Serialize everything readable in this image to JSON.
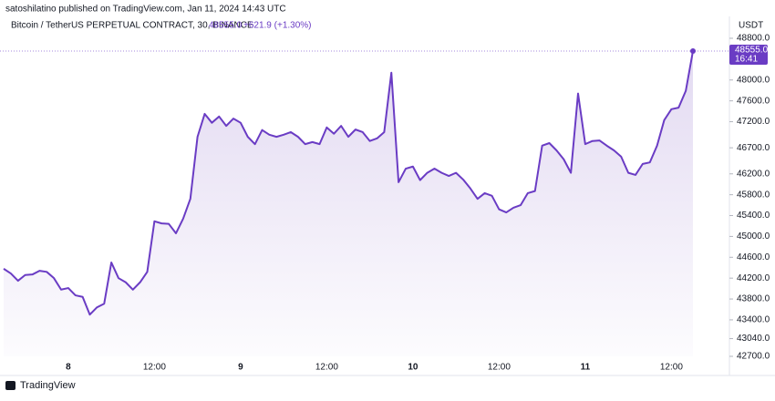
{
  "header": "satoshilatino published on TradingView.com, Jan 11, 2024 14:43 UTC",
  "footer": "TradingView",
  "chart_data": {
    "type": "line",
    "legend": {
      "symbol": "Bitcoin / TetherUS PERPETUAL CONTRACT, 30, BINANCE",
      "price": "48555.0",
      "change": "+621.9 (+1.30%)"
    },
    "axis_unit": "USDT",
    "price_tag": {
      "price": "48555.0",
      "countdown": "16:41"
    },
    "categories": [
      null,
      null,
      null,
      null,
      null,
      null,
      null,
      null,
      null,
      "8",
      null,
      null,
      null,
      null,
      null,
      null,
      null,
      null,
      null,
      null,
      null,
      "12:00",
      null,
      null,
      null,
      null,
      null,
      null,
      null,
      null,
      null,
      null,
      null,
      "9",
      null,
      null,
      null,
      null,
      null,
      null,
      null,
      null,
      null,
      null,
      null,
      "12:00",
      null,
      null,
      null,
      null,
      null,
      null,
      null,
      null,
      null,
      null,
      null,
      "10",
      null,
      null,
      null,
      null,
      null,
      null,
      null,
      null,
      null,
      null,
      null,
      "12:00",
      null,
      null,
      null,
      null,
      null,
      null,
      null,
      null,
      null,
      null,
      null,
      "11",
      null,
      null,
      null,
      null,
      null,
      null,
      null,
      null,
      null,
      null,
      null,
      "12:00",
      null,
      null,
      null
    ],
    "series": [
      {
        "color": "#6a3cc4",
        "values": [
          44380,
          44290,
          44150,
          44260,
          44270,
          44340,
          44320,
          44200,
          43980,
          44010,
          43870,
          43840,
          43500,
          43640,
          43710,
          44500,
          44200,
          44120,
          43980,
          44120,
          44320,
          45290,
          45250,
          45240,
          45060,
          45340,
          45720,
          46910,
          47350,
          47180,
          47300,
          47120,
          47260,
          47180,
          46910,
          46770,
          47040,
          46950,
          46910,
          46950,
          47000,
          46910,
          46770,
          46810,
          46770,
          47090,
          46970,
          47120,
          46910,
          47050,
          47000,
          46830,
          46880,
          47000,
          48140,
          46040,
          46300,
          46340,
          46080,
          46220,
          46300,
          46220,
          46160,
          46220,
          46090,
          45920,
          45720,
          45830,
          45780,
          45520,
          45460,
          45550,
          45600,
          45830,
          45870,
          46740,
          46790,
          46650,
          46480,
          46220,
          47740,
          46770,
          46830,
          46840,
          46740,
          46650,
          46530,
          46220,
          46180,
          46390,
          46420,
          46740,
          47230,
          47440,
          47470,
          47790,
          48555
        ]
      }
    ],
    "ylim": [
      42700,
      48800
    ],
    "yticks": [
      {
        "value": 48800,
        "label": "48800.0"
      },
      {
        "value": 48000,
        "label": "48000.0"
      },
      {
        "value": 47600,
        "label": "47600.0"
      },
      {
        "value": 47200,
        "label": "47200.0"
      },
      {
        "value": 46700,
        "label": "46700.0"
      },
      {
        "value": 46200,
        "label": "46200.0"
      },
      {
        "value": 45800,
        "label": "45800.0"
      },
      {
        "value": 45400,
        "label": "45400.0"
      },
      {
        "value": 45000,
        "label": "45000.0"
      },
      {
        "value": 44600,
        "label": "44600.0"
      },
      {
        "value": 44200,
        "label": "44200.0"
      },
      {
        "value": 43800,
        "label": "43800.0"
      },
      {
        "value": 43400,
        "label": "43400.0"
      },
      {
        "value": 43040,
        "label": "43040.0"
      },
      {
        "value": 42700,
        "label": "42700.0"
      }
    ]
  }
}
